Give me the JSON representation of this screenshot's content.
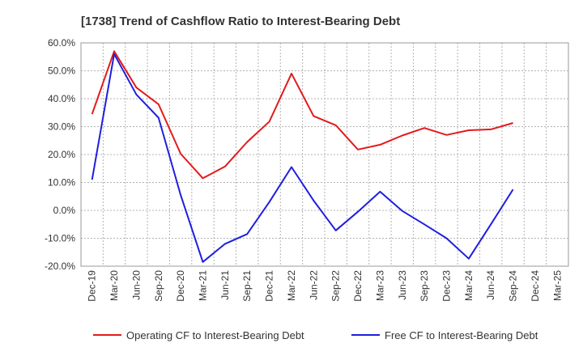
{
  "chart_data": {
    "type": "line",
    "title": "[1738]  Trend of Cashflow Ratio to Interest-Bearing Debt",
    "categories": [
      "Dec-19",
      "Mar-20",
      "Jun-20",
      "Sep-20",
      "Dec-20",
      "Mar-21",
      "Jun-21",
      "Sep-21",
      "Dec-21",
      "Mar-22",
      "Jun-22",
      "Sep-22",
      "Dec-22",
      "Mar-23",
      "Jun-23",
      "Sep-23",
      "Dec-23",
      "Mar-24",
      "Jun-24",
      "Sep-24",
      "Dec-24",
      "Mar-25"
    ],
    "y_ticks": [
      "60.0%",
      "50.0%",
      "40.0%",
      "30.0%",
      "20.0%",
      "10.0%",
      "0.0%",
      "-10.0%",
      "-20.0%"
    ],
    "ylim": [
      -20,
      60
    ],
    "grid": true,
    "legend_position": "bottom",
    "series": [
      {
        "name": "Operating CF to Interest-Bearing Debt",
        "color": "#e31a1c",
        "values": [
          34.5,
          57.0,
          44.0,
          38.0,
          20.3,
          11.5,
          15.7,
          24.5,
          31.8,
          49.0,
          33.8,
          30.5,
          21.8,
          23.5,
          26.8,
          29.5,
          27.0,
          28.7,
          29.0,
          31.3,
          null,
          null
        ]
      },
      {
        "name": "Free CF to Interest-Bearing Debt",
        "color": "#1f1fdd",
        "values": [
          11.0,
          56.0,
          41.5,
          33.2,
          5.5,
          -18.5,
          -12.0,
          -8.5,
          3.0,
          15.5,
          3.5,
          -7.2,
          -0.5,
          6.7,
          -0.2,
          -5.0,
          -10.0,
          -17.3,
          -5.0,
          7.5,
          null,
          null
        ]
      }
    ]
  }
}
